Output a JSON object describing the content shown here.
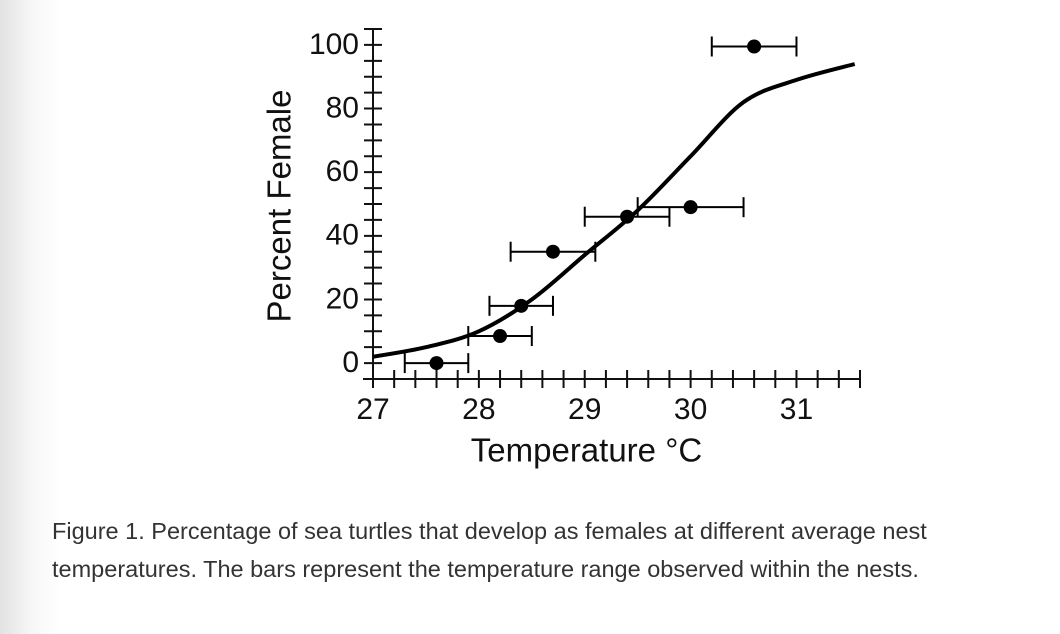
{
  "chart_data": {
    "type": "scatter",
    "xlabel": "Temperature °C",
    "ylabel": "Percent Female",
    "xlim": [
      27,
      31.6
    ],
    "ylim": [
      -5,
      105
    ],
    "xticks": [
      27,
      28,
      29,
      30,
      31
    ],
    "yticks": [
      0,
      20,
      40,
      60,
      80,
      100
    ],
    "xminorticks": [
      27.2,
      27.4,
      27.6,
      27.8,
      28.2,
      28.4,
      28.6,
      28.8,
      29.2,
      29.4,
      29.6,
      29.8,
      30.2,
      30.4,
      30.6,
      30.8,
      31.2,
      31.4,
      31.6
    ],
    "yminorticks": [
      5,
      10,
      15,
      25,
      30,
      35,
      45,
      50,
      55,
      65,
      70,
      75,
      85,
      90,
      95,
      105
    ],
    "series": [
      {
        "type": "scatter",
        "color": "#000000",
        "x": [
          27.6,
          28.2,
          28.4,
          28.7,
          29.4,
          30.0,
          30.6
        ],
        "values": [
          0,
          8.5,
          18,
          35,
          46,
          49,
          99.5
        ],
        "xerr": [
          0.3,
          0.3,
          0.3,
          0.4,
          0.4,
          0.5,
          0.4
        ]
      },
      {
        "type": "line",
        "color": "#000000",
        "x": [
          27,
          27.5,
          28,
          28.5,
          29,
          29.5,
          30,
          30.5,
          31,
          31.55
        ],
        "values": [
          2,
          5,
          10,
          20,
          34,
          48,
          65,
          82,
          89,
          94
        ]
      }
    ]
  },
  "caption": "Figure 1. Percentage of sea turtles that develop as females at different average nest temperatures. The bars represent the temperature range observed within the nests."
}
